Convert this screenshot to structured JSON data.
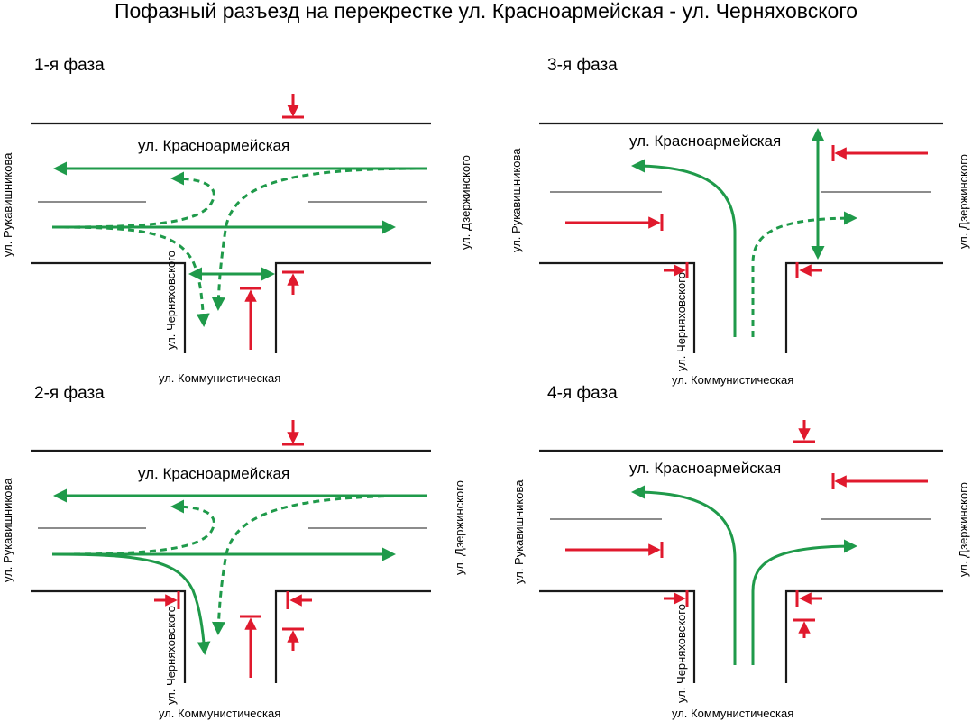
{
  "title": "Пофазный разъезд на перекрестке ул. Красноармейская - ул. Черняховского",
  "phases": [
    {
      "label": "1-я фаза"
    },
    {
      "label": "2-я фаза"
    },
    {
      "label": "3-я фаза"
    },
    {
      "label": "4-я фаза"
    }
  ],
  "streets": {
    "main": "ул. Красноармейская",
    "left": "ул. Рукавишникова",
    "right": "ул. Дзержинского",
    "side": "ул. Черняховского",
    "bottom": "ул. Коммунистическая"
  },
  "colors": {
    "allowed": "#1f9a4a",
    "stop": "#e0192d",
    "road": "#1a1a1a"
  }
}
